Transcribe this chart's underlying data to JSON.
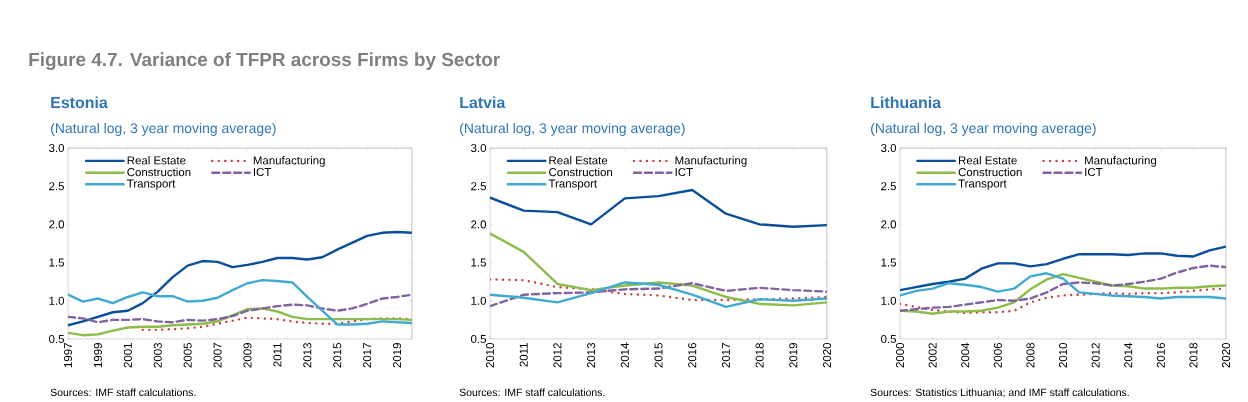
{
  "chart_data": [
    {
      "type": "line",
      "title": "Estonia",
      "subtitle": "(Natural log, 3 year moving average)",
      "annotations": [
        "Figure 4.7. Variance of TFPR across Firms by Sector",
        "Sources: IMF staff calculations."
      ],
      "x": [
        1997,
        1998,
        1999,
        2000,
        2001,
        2002,
        2003,
        2004,
        2005,
        2006,
        2007,
        2008,
        2009,
        2010,
        2011,
        2012,
        2013,
        2014,
        2015,
        2016,
        2017,
        2018,
        2019,
        2020
      ],
      "xlim": [
        1997,
        2020
      ],
      "xticks": [
        1997,
        1999,
        2001,
        2003,
        2005,
        2007,
        2009,
        2011,
        2013,
        2015,
        2017,
        2019
      ],
      "ylim": [
        0.5,
        3.0
      ],
      "yticks": [
        {
          "value": 0.5,
          "label": "0.5"
        },
        {
          "value": 1,
          "label": "1.0"
        },
        {
          "value": 1.5,
          "label": "1.5"
        },
        {
          "value": 2,
          "label": "2.0"
        },
        {
          "value": 2.5,
          "label": "2.5"
        },
        {
          "value": 3,
          "label": "3.0"
        }
      ],
      "grid": false,
      "legend": "top",
      "series": [
        {
          "name": "Real Estate",
          "color": "#0b4f9c",
          "line_style": "solid",
          "values": [
            0.68,
            0.73,
            0.79,
            0.85,
            0.87,
            0.97,
            1.12,
            1.31,
            1.46,
            1.52,
            1.51,
            1.44,
            1.47,
            1.51,
            1.56,
            1.56,
            1.54,
            1.57,
            1.67,
            1.76,
            1.85,
            1.89,
            1.9,
            1.89
          ]
        },
        {
          "name": "Manufacturing",
          "color": "#d0393b",
          "line_style": "dotted",
          "values": [
            null,
            null,
            null,
            null,
            null,
            0.62,
            0.62,
            0.63,
            0.64,
            0.66,
            0.7,
            0.74,
            0.78,
            0.77,
            0.76,
            0.73,
            0.71,
            0.7,
            0.7,
            0.73,
            0.76,
            0.77,
            0.77,
            0.76
          ]
        },
        {
          "name": "Construction",
          "color": "#8cbd4a",
          "line_style": "solid",
          "values": [
            0.58,
            0.55,
            0.56,
            0.61,
            0.65,
            0.66,
            0.66,
            0.68,
            0.69,
            0.7,
            0.73,
            0.81,
            0.89,
            0.9,
            0.86,
            0.79,
            0.76,
            0.76,
            0.76,
            0.76,
            0.76,
            0.76,
            0.76,
            0.75
          ]
        },
        {
          "name": "ICT",
          "color": "#8064a2",
          "line_style": "dashed",
          "values": [
            0.79,
            0.77,
            0.72,
            0.75,
            0.75,
            0.76,
            0.73,
            0.72,
            0.75,
            0.74,
            0.76,
            0.8,
            0.87,
            0.9,
            0.93,
            0.95,
            0.94,
            0.9,
            0.87,
            0.9,
            0.96,
            1.03,
            1.05,
            1.08
          ]
        },
        {
          "name": "Transport",
          "color": "#42a9d0",
          "line_style": "solid",
          "values": [
            1.08,
            0.99,
            1.03,
            0.97,
            1.05,
            1.11,
            1.06,
            1.06,
            0.99,
            1.0,
            1.04,
            1.14,
            1.23,
            1.27,
            1.26,
            1.24,
            1.05,
            0.87,
            0.69,
            0.69,
            0.7,
            0.73,
            0.72,
            0.71
          ]
        }
      ]
    },
    {
      "type": "line",
      "title": "Latvia",
      "subtitle": "(Natural log, 3 year moving average)",
      "annotations": [
        "Sources: IMF staff calculations."
      ],
      "x": [
        2010,
        2011,
        2012,
        2013,
        2014,
        2015,
        2016,
        2017,
        2018,
        2019,
        2020
      ],
      "xlim": [
        2010,
        2020
      ],
      "xticks": [
        2010,
        2011,
        2012,
        2013,
        2014,
        2015,
        2016,
        2017,
        2018,
        2019,
        2020
      ],
      "ylim": [
        0.5,
        3.0
      ],
      "yticks": [
        {
          "value": 0.5,
          "label": "0.5"
        },
        {
          "value": 1,
          "label": "1.0"
        },
        {
          "value": 1.5,
          "label": "1.5"
        },
        {
          "value": 2,
          "label": "2.0"
        },
        {
          "value": 2.5,
          "label": "2.5"
        },
        {
          "value": 3,
          "label": "3.0"
        }
      ],
      "grid": false,
      "legend": "top",
      "series": [
        {
          "name": "Real Estate",
          "color": "#0b4f9c",
          "line_style": "solid",
          "values": [
            2.35,
            2.18,
            2.16,
            2.0,
            2.34,
            2.37,
            2.45,
            2.14,
            2.0,
            1.97,
            1.99
          ]
        },
        {
          "name": "Manufacturing",
          "color": "#d0393b",
          "line_style": "dotted",
          "values": [
            1.28,
            1.27,
            1.18,
            1.15,
            1.09,
            1.07,
            1.01,
            1.01,
            1.02,
            1.03,
            1.05
          ]
        },
        {
          "name": "Construction",
          "color": "#8cbd4a",
          "line_style": "solid",
          "values": [
            1.88,
            1.64,
            1.22,
            1.14,
            1.2,
            1.24,
            1.2,
            1.05,
            0.96,
            0.94,
            0.98
          ]
        },
        {
          "name": "ICT",
          "color": "#8064a2",
          "line_style": "dashed",
          "values": [
            0.93,
            1.08,
            1.1,
            1.11,
            1.15,
            1.16,
            1.23,
            1.13,
            1.17,
            1.14,
            1.12
          ]
        },
        {
          "name": "Transport",
          "color": "#42a9d0",
          "line_style": "solid",
          "values": [
            1.08,
            1.04,
            0.98,
            1.1,
            1.24,
            1.21,
            1.08,
            0.92,
            1.02,
            1.0,
            1.03
          ]
        }
      ]
    },
    {
      "type": "line",
      "title": "Lithuania",
      "subtitle": "(Natural log, 3 year moving average)",
      "annotations": [
        "Sources: Statistics Lithuania; and IMF staff calculations."
      ],
      "x": [
        2000,
        2001,
        2002,
        2003,
        2004,
        2005,
        2006,
        2007,
        2008,
        2009,
        2010,
        2011,
        2012,
        2013,
        2014,
        2015,
        2016,
        2017,
        2018,
        2019,
        2020
      ],
      "xlim": [
        2000,
        2020
      ],
      "xticks": [
        2000,
        2002,
        2004,
        2006,
        2008,
        2010,
        2012,
        2014,
        2016,
        2018,
        2020
      ],
      "ylim": [
        0.5,
        3.0
      ],
      "yticks": [
        {
          "value": 0.5,
          "label": "0.5"
        },
        {
          "value": 1,
          "label": "1.0"
        },
        {
          "value": 1.5,
          "label": "1.5"
        },
        {
          "value": 2,
          "label": "2.0"
        },
        {
          "value": 2.5,
          "label": "2.5"
        },
        {
          "value": 3,
          "label": "3.0"
        }
      ],
      "grid": false,
      "legend": "top",
      "series": [
        {
          "name": "Real Estate",
          "color": "#0b4f9c",
          "line_style": "solid",
          "values": [
            1.14,
            1.18,
            1.22,
            1.25,
            1.29,
            1.42,
            1.49,
            1.49,
            1.45,
            1.48,
            1.55,
            1.61,
            1.61,
            1.61,
            1.6,
            1.62,
            1.62,
            1.59,
            1.58,
            1.66,
            1.71
          ]
        },
        {
          "name": "Manufacturing",
          "color": "#d0393b",
          "line_style": "dotted",
          "values": [
            0.96,
            0.92,
            0.88,
            0.86,
            0.84,
            0.85,
            0.85,
            0.87,
            0.98,
            1.04,
            1.07,
            1.08,
            1.09,
            1.1,
            1.09,
            1.1,
            1.1,
            1.11,
            1.13,
            1.15,
            1.16
          ]
        },
        {
          "name": "Construction",
          "color": "#8cbd4a",
          "line_style": "solid",
          "values": [
            0.87,
            0.86,
            0.83,
            0.86,
            0.86,
            0.87,
            0.91,
            0.98,
            1.15,
            1.28,
            1.35,
            1.3,
            1.25,
            1.2,
            1.19,
            1.16,
            1.16,
            1.17,
            1.17,
            1.19,
            1.2
          ]
        },
        {
          "name": "ICT",
          "color": "#8064a2",
          "line_style": "dashed",
          "values": [
            0.87,
            0.89,
            0.91,
            0.92,
            0.95,
            0.98,
            1.01,
            1.0,
            1.03,
            1.11,
            1.22,
            1.24,
            1.23,
            1.2,
            1.22,
            1.25,
            1.29,
            1.37,
            1.43,
            1.46,
            1.44
          ]
        },
        {
          "name": "Transport",
          "color": "#42a9d0",
          "line_style": "solid",
          "values": [
            1.07,
            1.13,
            1.16,
            1.23,
            1.21,
            1.18,
            1.12,
            1.16,
            1.32,
            1.36,
            1.29,
            1.11,
            1.09,
            1.07,
            1.06,
            1.05,
            1.03,
            1.05,
            1.05,
            1.05,
            1.03
          ]
        }
      ]
    }
  ]
}
